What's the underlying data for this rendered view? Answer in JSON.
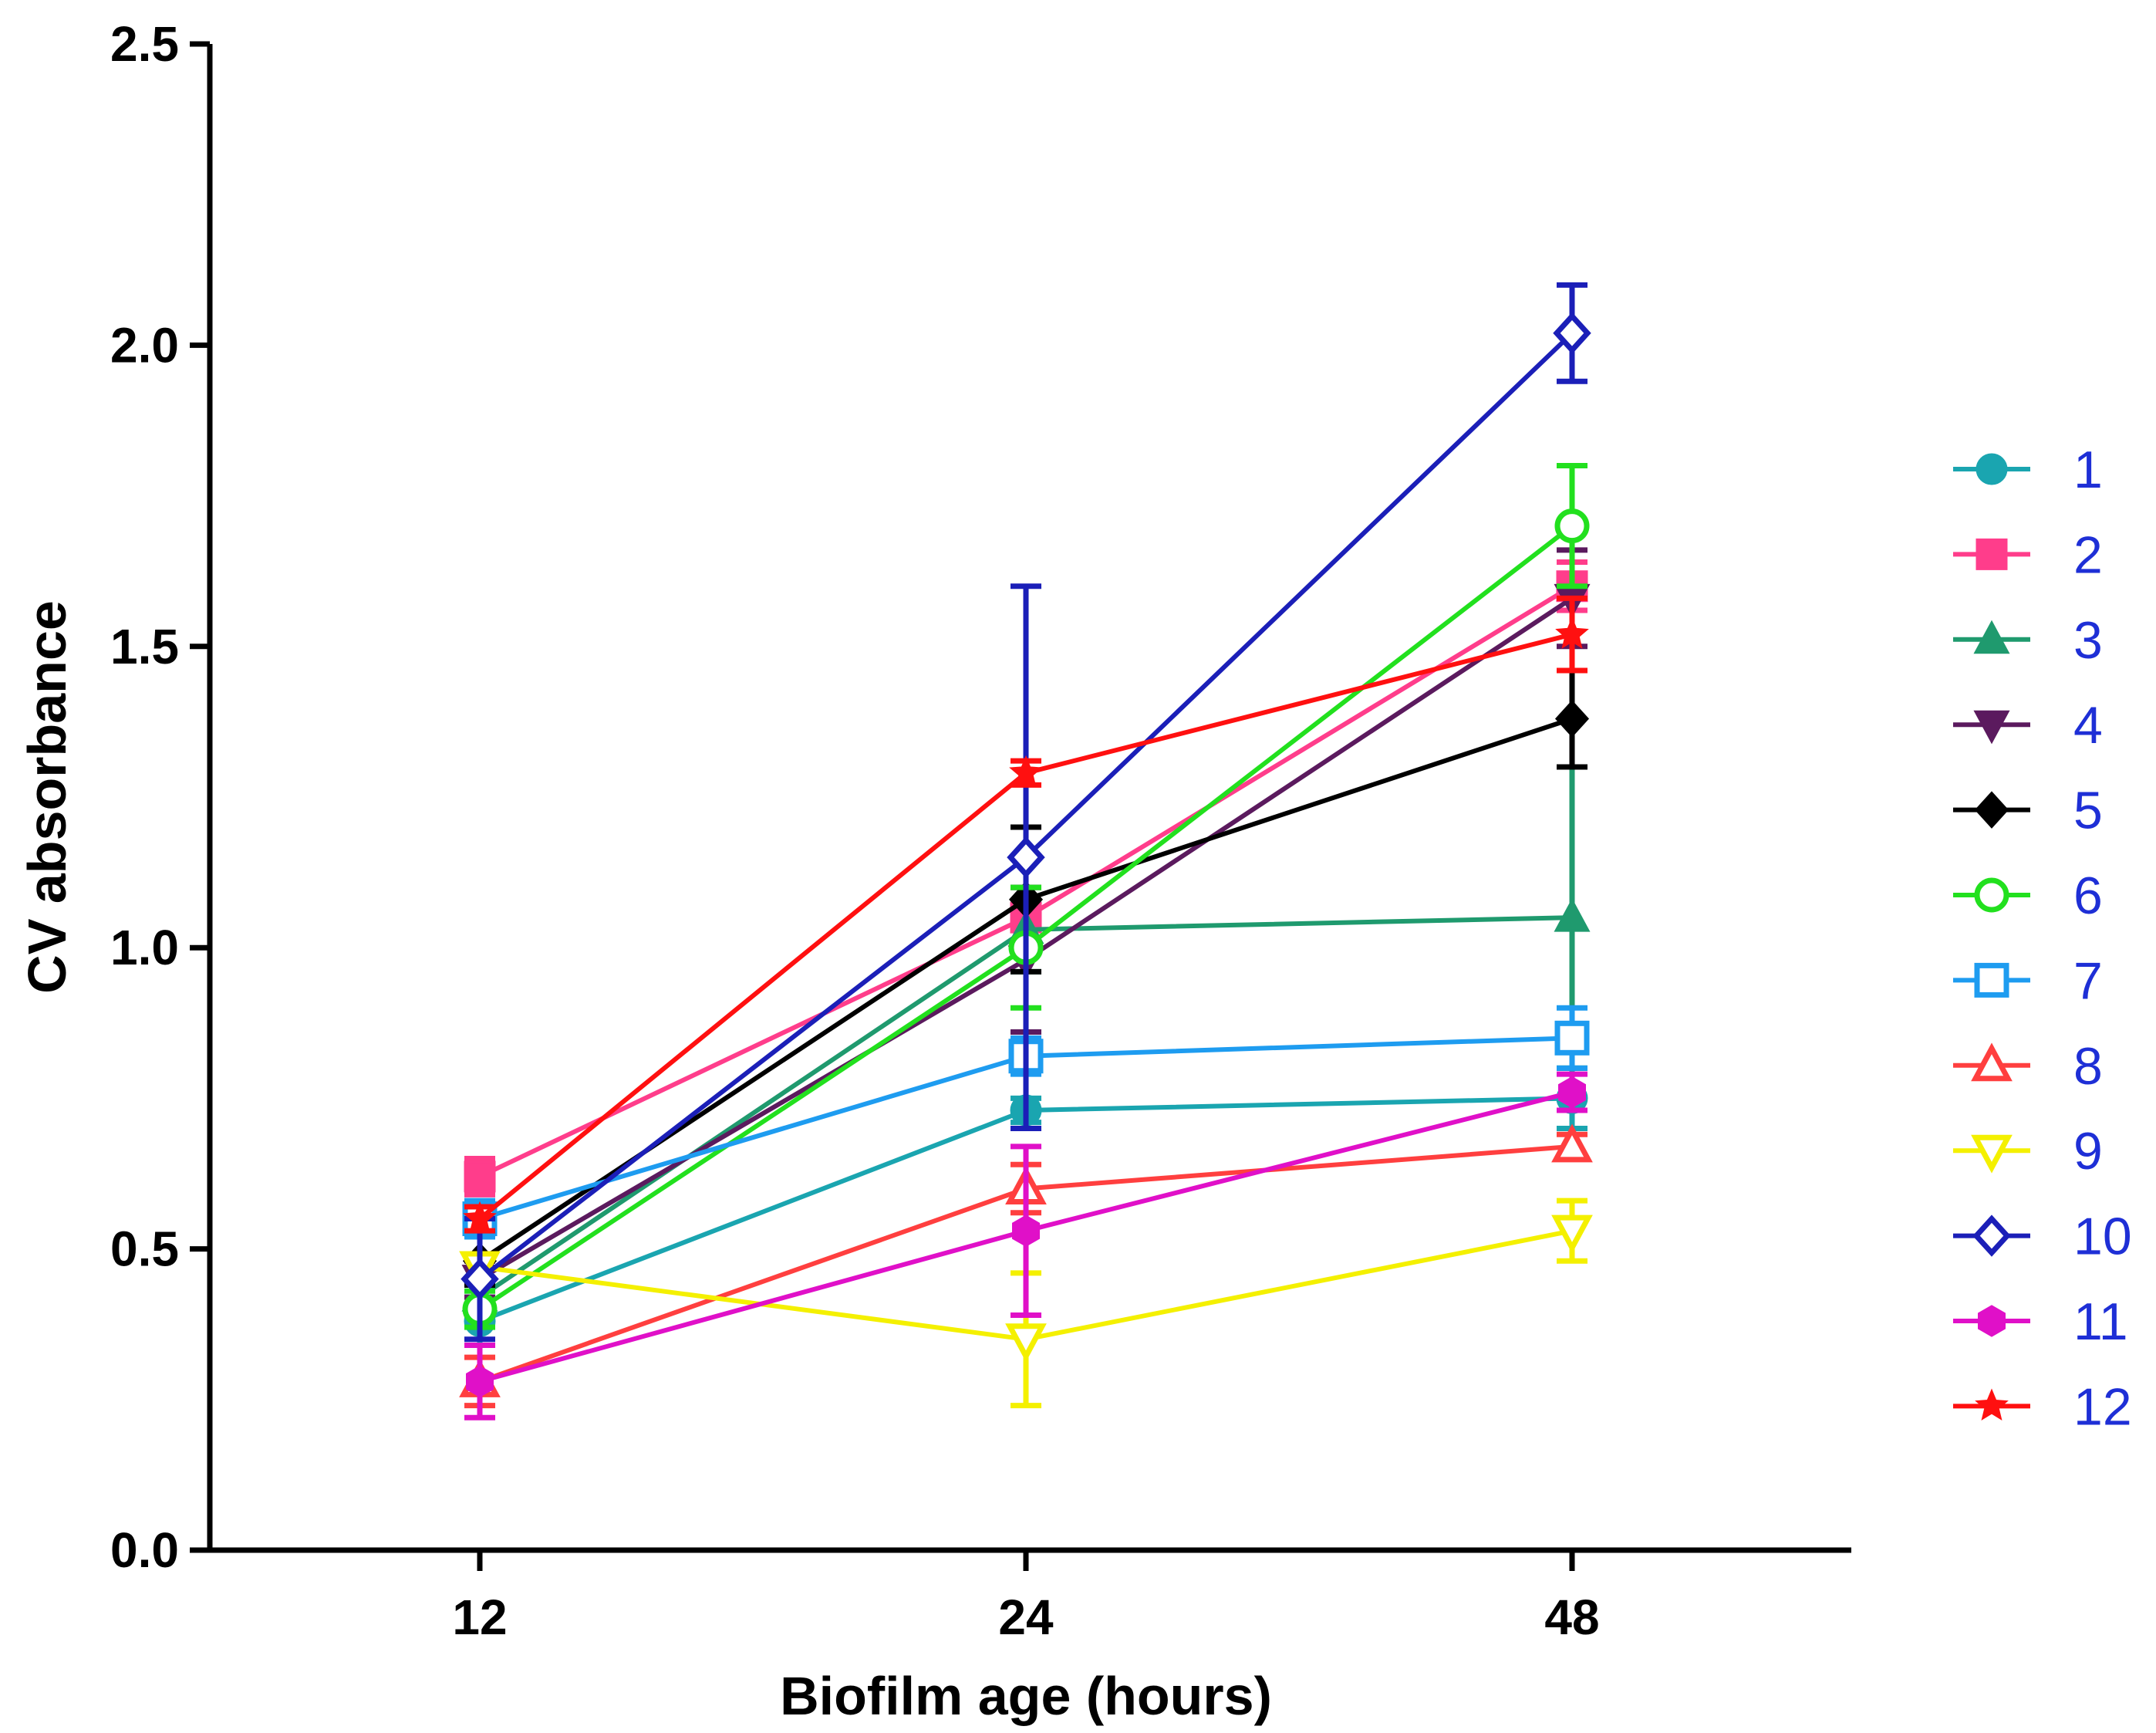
{
  "chart_data": {
    "type": "line",
    "title": "",
    "xlabel": "Biofilm age (hours)",
    "ylabel": "CV absorbance",
    "categories": [
      "12",
      "24",
      "48"
    ],
    "ylim": [
      0,
      2.5
    ],
    "yticks": [
      "0.0",
      "0.5",
      "1.0",
      "1.5",
      "2.0",
      "2.5"
    ],
    "grid": false,
    "legend_position": "right",
    "series": [
      {
        "name": "1",
        "color": "#1aa5b0",
        "marker": "circle",
        "values": [
          0.38,
          0.73,
          0.75
        ],
        "errors": [
          0.04,
          0.02,
          0.05
        ]
      },
      {
        "name": "2",
        "color": "#ff3d8b",
        "marker": "square",
        "values": [
          0.62,
          1.05,
          1.6
        ],
        "errors": [
          0.03,
          0.05,
          0.04
        ]
      },
      {
        "name": "3",
        "color": "#1f9a6e",
        "marker": "triangle",
        "values": [
          0.42,
          1.03,
          1.05
        ],
        "errors": [
          0.03,
          0.07,
          0.25
        ]
      },
      {
        "name": "4",
        "color": "#5b1a5e",
        "marker": "triangle-down",
        "values": [
          0.45,
          0.98,
          1.58
        ],
        "errors": [
          0.03,
          0.12,
          0.08
        ]
      },
      {
        "name": "5",
        "color": "#000000",
        "marker": "diamond",
        "values": [
          0.48,
          1.08,
          1.38
        ],
        "errors": [
          0.04,
          0.12,
          0.08
        ]
      },
      {
        "name": "6",
        "color": "#22e01e",
        "marker": "circle-open",
        "values": [
          0.4,
          1.0,
          1.7
        ],
        "errors": [
          0.03,
          0.1,
          0.1
        ]
      },
      {
        "name": "7",
        "color": "#1e9cf0",
        "marker": "square-open",
        "values": [
          0.55,
          0.82,
          0.85
        ],
        "errors": [
          0.03,
          0.03,
          0.05
        ]
      },
      {
        "name": "8",
        "color": "#ff3f3f",
        "marker": "triangle-open",
        "values": [
          0.28,
          0.6,
          0.67
        ],
        "errors": [
          0.04,
          0.04,
          0.02
        ]
      },
      {
        "name": "9",
        "color": "#f4f000",
        "marker": "triangle-down-open",
        "values": [
          0.47,
          0.35,
          0.53
        ],
        "errors": [
          0.02,
          0.11,
          0.05
        ]
      },
      {
        "name": "10",
        "color": "#1b1fb8",
        "marker": "diamond-open",
        "values": [
          0.45,
          1.15,
          2.02
        ],
        "errors": [
          0.1,
          0.45,
          0.08
        ]
      },
      {
        "name": "11",
        "color": "#e010c8",
        "marker": "hexagon",
        "values": [
          0.28,
          0.53,
          0.76
        ],
        "errors": [
          0.06,
          0.14,
          0.03
        ]
      },
      {
        "name": "12",
        "color": "#ff1010",
        "marker": "star",
        "values": [
          0.55,
          1.29,
          1.52
        ],
        "errors": [
          0.02,
          0.02,
          0.06
        ]
      }
    ]
  },
  "legend_text_color": "#1e2fd6"
}
